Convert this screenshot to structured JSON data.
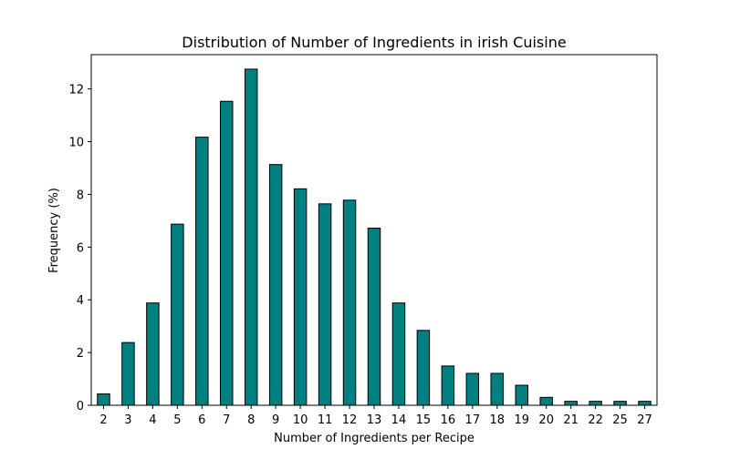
{
  "chart_data": {
    "type": "bar",
    "title": "Distribution of Number of Ingredients in irish Cuisine",
    "xlabel": "Number of Ingredients per Recipe",
    "ylabel": "Frequency (%)",
    "categories": [
      "2",
      "3",
      "4",
      "5",
      "6",
      "7",
      "8",
      "9",
      "10",
      "11",
      "12",
      "13",
      "14",
      "15",
      "16",
      "17",
      "18",
      "19",
      "20",
      "21",
      "22",
      "25",
      "27"
    ],
    "values": [
      0.43,
      2.38,
      3.88,
      6.87,
      10.17,
      11.53,
      12.75,
      9.13,
      8.21,
      7.64,
      7.78,
      6.72,
      3.88,
      2.84,
      1.49,
      1.21,
      1.21,
      0.76,
      0.3,
      0.15,
      0.15,
      0.15,
      0.15
    ],
    "ylim": [
      0,
      13.3
    ],
    "yticks": [
      0,
      2,
      4,
      6,
      8,
      10,
      12
    ],
    "grid": false,
    "legend": "none",
    "colors": {
      "bar_fill": "#008080",
      "bar_edge": "#000000",
      "axis": "#000000"
    }
  }
}
